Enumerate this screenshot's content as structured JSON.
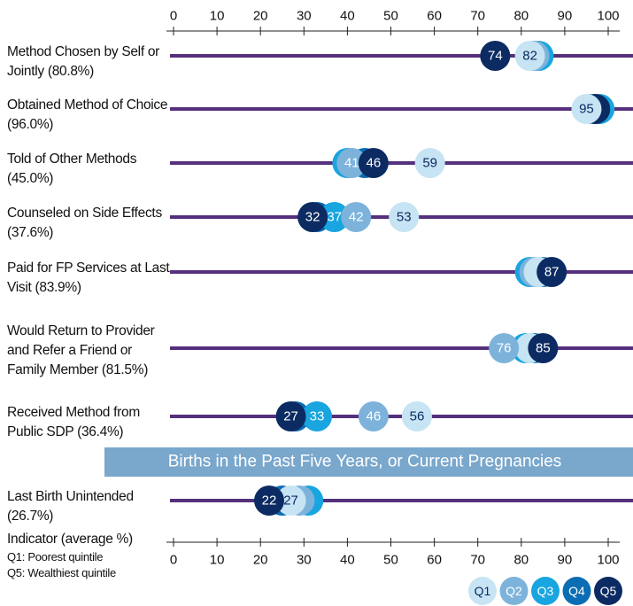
{
  "chart_data": {
    "type": "dot",
    "categories": [
      "Method Chosen by Self or Jointly (80.8%)",
      "Obtained Method of Choice (96.0%)",
      "Told of Other Methods (45.0%)",
      "Counseled on Side Effects (37.6%)",
      "Paid for FP Services at Last Visit (83.9%)",
      "Would Return to Provider and Refer a Friend or Family Member (81.5%)",
      "Received Method from Public SDP (36.4%)",
      "Last Birth Unintended (26.7%)"
    ],
    "section": "Births in the Past Five Years, or Current Pregnancies",
    "series": [
      {
        "name": "Q1",
        "color": "#c6e4f3",
        "values": [
          82,
          95,
          59,
          53,
          84,
          82,
          56,
          27
        ],
        "value_labels": [
          "82",
          "95",
          "59",
          "53",
          null,
          null,
          "56",
          "27"
        ]
      },
      {
        "name": "Q2",
        "color": "#7db3db",
        "values": [
          83,
          96,
          41,
          42,
          83,
          76,
          46,
          29
        ],
        "value_labels": [
          null,
          null,
          "41",
          "42",
          null,
          "76",
          "46",
          null
        ]
      },
      {
        "name": "Q3",
        "color": "#18a5e0",
        "values": [
          84,
          98,
          40,
          37,
          82,
          81,
          33,
          31
        ],
        "value_labels": [
          null,
          null,
          null,
          "37",
          null,
          null,
          "33",
          null
        ]
      },
      {
        "name": "Q4",
        "color": "#0b6db3",
        "values": [
          83,
          97,
          44,
          33,
          85,
          83,
          28,
          25
        ],
        "value_labels": [
          null,
          null,
          null,
          null,
          null,
          null,
          null,
          null
        ]
      },
      {
        "name": "Q5",
        "color": "#0c2b63",
        "values": [
          74,
          97,
          46,
          32,
          87,
          85,
          27,
          22
        ],
        "value_labels": [
          "74",
          null,
          "46",
          "32",
          "87",
          "85",
          "27",
          "22"
        ]
      }
    ],
    "xlim": [
      0,
      100
    ],
    "xticks": [
      0,
      10,
      20,
      30,
      40,
      50,
      60,
      70,
      80,
      90,
      100
    ],
    "xlabel": "Indicator (average %)",
    "notes": [
      "Q1: Poorest quintile",
      "Q5: Wealthiest quintile"
    ]
  }
}
